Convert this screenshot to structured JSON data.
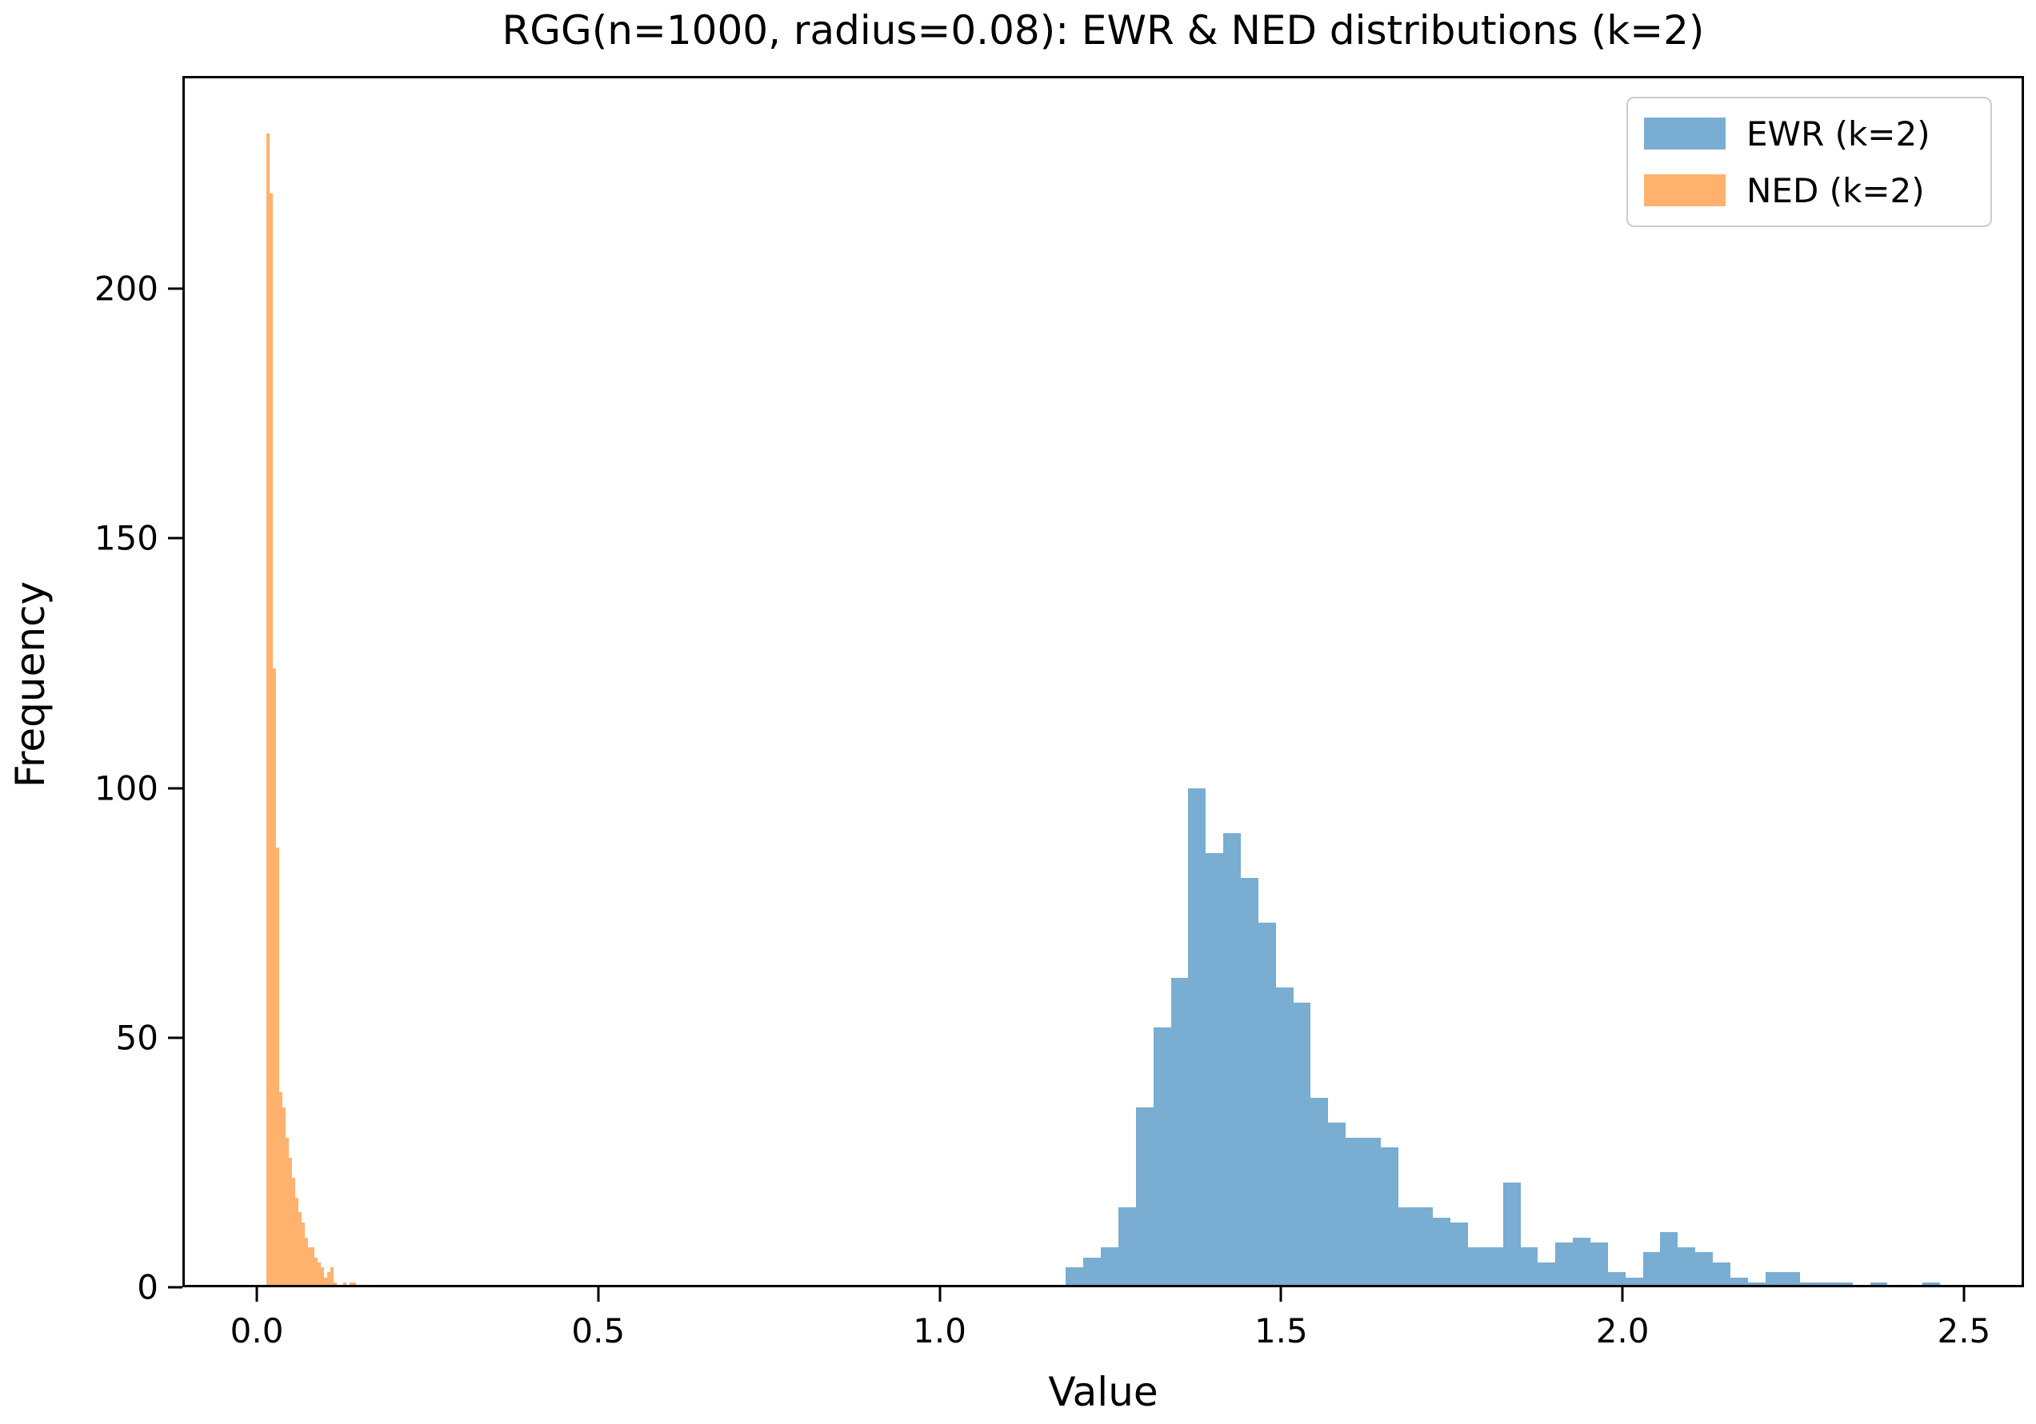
{
  "figure": {
    "title": "RGG(n=1000, radius=0.08): EWR & NED distributions (k=2)",
    "xlabel": "Value",
    "ylabel": "Frequency"
  },
  "colors": {
    "ewr_fill": "#79ADD2",
    "ned_fill": "#FFB26E",
    "axis": "#000000",
    "legend_border": "#cccccc",
    "background": "#ffffff"
  },
  "legend": {
    "position": "upper right",
    "items": [
      {
        "label": "EWR (k=2)",
        "color": "#79ADD2"
      },
      {
        "label": "NED (k=2)",
        "color": "#FFB26E"
      }
    ]
  },
  "chart_data": {
    "type": "bar",
    "subtype": "histogram",
    "title": "RGG(n=1000, radius=0.08): EWR & NED distributions (k=2)",
    "xlabel": "Value",
    "ylabel": "Frequency",
    "xlim": [
      -0.109,
      2.588
    ],
    "ylim": [
      0,
      242.6
    ],
    "grid": false,
    "legend_position": "upper right",
    "xticks": {
      "values": [
        0.0,
        0.5,
        1.0,
        1.5,
        2.0,
        2.5
      ],
      "labels": [
        "0.0",
        "0.5",
        "1.0",
        "1.5",
        "2.0",
        "2.5"
      ]
    },
    "yticks": {
      "values": [
        0,
        50,
        100,
        150,
        200
      ],
      "labels": [
        "0",
        "50",
        "100",
        "150",
        "200"
      ]
    },
    "series": [
      {
        "name": "EWR (k=2)",
        "color": "#79ADD2",
        "bin_start": 1.185,
        "bin_width": 0.0256,
        "counts": [
          4,
          6,
          8,
          16,
          36,
          52,
          62,
          100,
          87,
          91,
          82,
          73,
          60,
          57,
          38,
          33,
          30,
          30,
          28,
          16,
          16,
          14,
          13,
          8,
          8,
          21,
          8,
          5,
          9,
          10,
          9,
          3,
          2,
          7,
          11,
          8,
          7,
          5,
          2,
          1,
          3,
          3,
          1,
          1,
          1,
          0,
          1,
          0,
          0,
          1
        ]
      },
      {
        "name": "NED (k=2)",
        "color": "#FFB26E",
        "bin_start": 0.014,
        "bin_width": 0.0047,
        "counts": [
          231,
          219,
          124,
          88,
          39,
          36,
          30,
          26,
          22,
          18,
          15,
          13,
          10,
          8,
          8,
          6,
          5,
          4,
          2,
          3,
          4,
          1,
          0,
          0,
          1,
          0,
          1,
          1
        ]
      }
    ]
  }
}
